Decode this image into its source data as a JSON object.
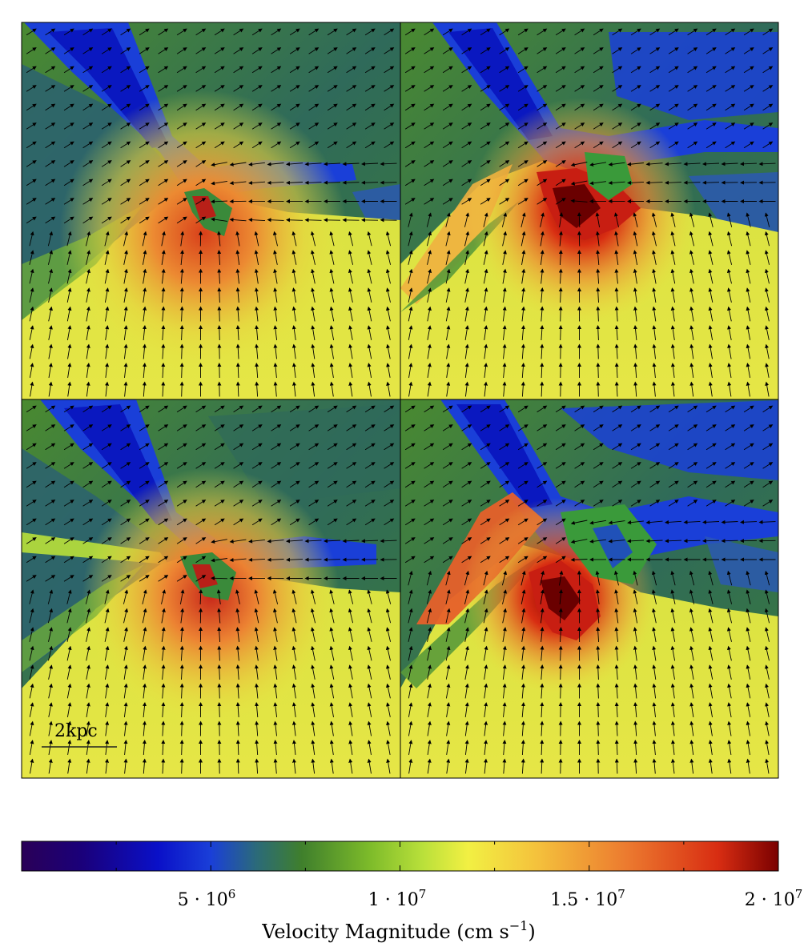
{
  "figure": {
    "panels": [
      {
        "name": "top-left",
        "hot_spot": "center-low"
      },
      {
        "name": "top-right",
        "hot_spot": "center-right"
      },
      {
        "name": "bottom-left",
        "hot_spot": "center"
      },
      {
        "name": "bottom-right",
        "hot_spot": "split"
      }
    ],
    "scale_bar": {
      "label": "2kpc"
    },
    "colorbar": {
      "label": "Velocity Magnitude (cm s",
      "label_exp": "−1",
      "label_close": ")",
      "ticks": [
        {
          "value": 5000000,
          "label_base": "5 · 10",
          "label_exp": "6"
        },
        {
          "value": 10000000,
          "label_base": "1 · 10",
          "label_exp": "7"
        },
        {
          "value": 15000000,
          "label_base": "1.5 · 10",
          "label_exp": "7"
        },
        {
          "value": 20000000,
          "label_base": "2 · 10",
          "label_exp": "7"
        }
      ],
      "range": [
        0,
        20000000
      ],
      "colormap": [
        "#2a0057",
        "#1a007a",
        "#0a10c8",
        "#1a3fd8",
        "#2b6a7a",
        "#3f7f2c",
        "#7dbb2a",
        "#b9e03a",
        "#f2f043",
        "#f4c23c",
        "#ec7a2f",
        "#d82d12",
        "#7a0000"
      ]
    }
  }
}
